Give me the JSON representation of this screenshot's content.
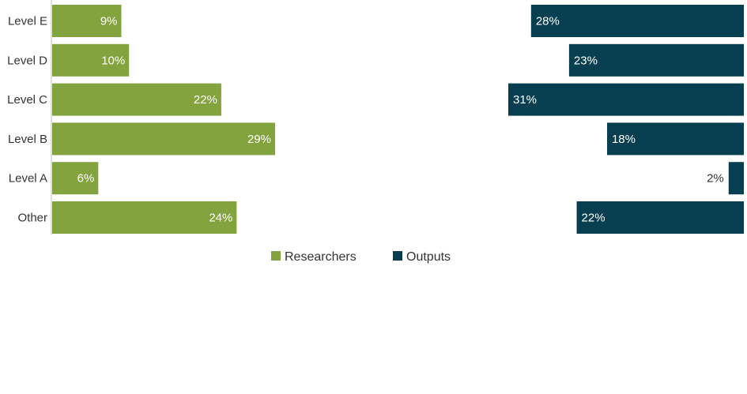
{
  "chart_data": {
    "type": "bar",
    "orientation": "horizontal",
    "layout": "butterfly",
    "categories": [
      "Level E",
      "Level D",
      "Level C",
      "Level B",
      "Level A",
      "Other"
    ],
    "series": [
      {
        "name": "Researchers",
        "values": [
          9,
          10,
          22,
          29,
          6,
          24
        ],
        "labels": [
          "9%",
          "10%",
          "22%",
          "29%",
          "6%",
          "24%"
        ],
        "color": "#82a33d",
        "direction": "left-to-right",
        "xlim": [
          0,
          100
        ]
      },
      {
        "name": "Outputs",
        "values": [
          28,
          23,
          31,
          18,
          2,
          22
        ],
        "labels": [
          "28%",
          "23%",
          "31%",
          "18%",
          "2%",
          "22%"
        ],
        "color": "#073f50",
        "direction": "right-to-left",
        "xlim": [
          0,
          100
        ]
      }
    ],
    "legend_placement": "bottom-center",
    "grid": false
  }
}
